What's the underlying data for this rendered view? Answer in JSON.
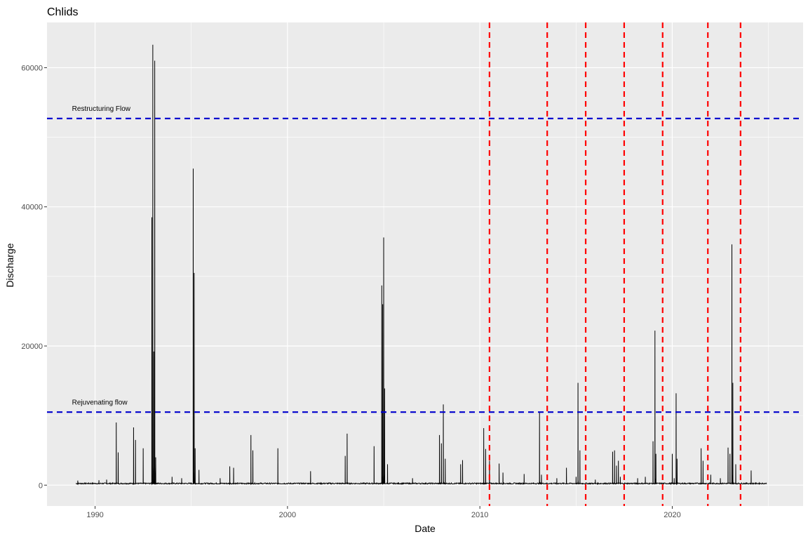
{
  "chart_data": {
    "type": "line",
    "title": "Chlids",
    "xlabel": "Date",
    "ylabel": "Discharge",
    "xlim": [
      1987.5,
      2026.8
    ],
    "ylim": [
      -3000,
      66500
    ],
    "x_ticks": [
      1990,
      2000,
      2010,
      2020
    ],
    "x_tick_labels": [
      "1990",
      "2000",
      "2010",
      "2020"
    ],
    "y_ticks": [
      0,
      20000,
      40000,
      60000
    ],
    "y_tick_labels": [
      "0",
      "20000",
      "40000",
      "60000"
    ],
    "grid": true,
    "background": "#ebebeb",
    "grid_color": "#ffffff",
    "series": [
      {
        "color": "#000000",
        "baseline": 150,
        "x_range": [
          1989.0,
          2024.9
        ],
        "peaks": [
          {
            "x": 1989.1,
            "y": 650
          },
          {
            "x": 1990.2,
            "y": 700
          },
          {
            "x": 1990.6,
            "y": 800
          },
          {
            "x": 1991.1,
            "y": 9000
          },
          {
            "x": 1991.2,
            "y": 4700
          },
          {
            "x": 1992.0,
            "y": 8300
          },
          {
            "x": 1992.1,
            "y": 6500
          },
          {
            "x": 1992.5,
            "y": 5300
          },
          {
            "x": 1992.95,
            "y": 38500
          },
          {
            "x": 1993.0,
            "y": 63300
          },
          {
            "x": 1993.05,
            "y": 19200
          },
          {
            "x": 1993.1,
            "y": 61000
          },
          {
            "x": 1993.15,
            "y": 4000
          },
          {
            "x": 1994.0,
            "y": 1200
          },
          {
            "x": 1994.5,
            "y": 1000
          },
          {
            "x": 1995.1,
            "y": 45500
          },
          {
            "x": 1995.15,
            "y": 30500
          },
          {
            "x": 1995.2,
            "y": 5300
          },
          {
            "x": 1995.4,
            "y": 2200
          },
          {
            "x": 1996.5,
            "y": 1000
          },
          {
            "x": 1997.0,
            "y": 2700
          },
          {
            "x": 1997.2,
            "y": 2500
          },
          {
            "x": 1998.1,
            "y": 7200
          },
          {
            "x": 1998.2,
            "y": 5000
          },
          {
            "x": 1999.5,
            "y": 5300
          },
          {
            "x": 2001.2,
            "y": 2000
          },
          {
            "x": 2003.0,
            "y": 4200
          },
          {
            "x": 2003.1,
            "y": 7400
          },
          {
            "x": 2004.5,
            "y": 5600
          },
          {
            "x": 2004.9,
            "y": 28700
          },
          {
            "x": 2004.95,
            "y": 26000
          },
          {
            "x": 2005.0,
            "y": 35600
          },
          {
            "x": 2005.05,
            "y": 13900
          },
          {
            "x": 2005.2,
            "y": 3000
          },
          {
            "x": 2006.5,
            "y": 1000
          },
          {
            "x": 2007.9,
            "y": 7200
          },
          {
            "x": 2008.0,
            "y": 6000
          },
          {
            "x": 2008.1,
            "y": 11600
          },
          {
            "x": 2008.2,
            "y": 3800
          },
          {
            "x": 2009.0,
            "y": 3000
          },
          {
            "x": 2009.1,
            "y": 3600
          },
          {
            "x": 2010.2,
            "y": 8200
          },
          {
            "x": 2010.3,
            "y": 5200
          },
          {
            "x": 2010.5,
            "y": 3500
          },
          {
            "x": 2011.0,
            "y": 3100
          },
          {
            "x": 2011.2,
            "y": 1800
          },
          {
            "x": 2012.3,
            "y": 1600
          },
          {
            "x": 2013.1,
            "y": 10500
          },
          {
            "x": 2013.2,
            "y": 1500
          },
          {
            "x": 2014.0,
            "y": 1000
          },
          {
            "x": 2014.5,
            "y": 2500
          },
          {
            "x": 2015.0,
            "y": 1200
          },
          {
            "x": 2015.1,
            "y": 14700
          },
          {
            "x": 2015.2,
            "y": 5000
          },
          {
            "x": 2016.0,
            "y": 800
          },
          {
            "x": 2016.9,
            "y": 4800
          },
          {
            "x": 2017.0,
            "y": 5000
          },
          {
            "x": 2017.1,
            "y": 2800
          },
          {
            "x": 2017.2,
            "y": 3500
          },
          {
            "x": 2017.3,
            "y": 1200
          },
          {
            "x": 2018.2,
            "y": 1000
          },
          {
            "x": 2018.6,
            "y": 1200
          },
          {
            "x": 2019.0,
            "y": 6300
          },
          {
            "x": 2019.1,
            "y": 22200
          },
          {
            "x": 2019.15,
            "y": 4500
          },
          {
            "x": 2020.0,
            "y": 4500
          },
          {
            "x": 2020.1,
            "y": 1000
          },
          {
            "x": 2020.2,
            "y": 13200
          },
          {
            "x": 2020.25,
            "y": 3800
          },
          {
            "x": 2021.5,
            "y": 5300
          },
          {
            "x": 2021.6,
            "y": 3500
          },
          {
            "x": 2022.0,
            "y": 1500
          },
          {
            "x": 2022.5,
            "y": 1000
          },
          {
            "x": 2022.9,
            "y": 5400
          },
          {
            "x": 2023.0,
            "y": 4500
          },
          {
            "x": 2023.1,
            "y": 34600
          },
          {
            "x": 2023.15,
            "y": 14700
          },
          {
            "x": 2023.3,
            "y": 3000
          },
          {
            "x": 2024.1,
            "y": 2100
          }
        ]
      }
    ],
    "hlines": [
      {
        "y": 52700,
        "color": "#0000cd",
        "dash": true,
        "label": "Restructuring Flow",
        "label_x": 1988.8,
        "label_y": 53800
      },
      {
        "y": 10500,
        "color": "#0000cd",
        "dash": true,
        "label": "Rejuvenating  flow",
        "label_x": 1988.8,
        "label_y": 11600
      }
    ],
    "vlines": [
      {
        "x": 2010.5,
        "color": "#ff0000",
        "dash": true
      },
      {
        "x": 2013.5,
        "color": "#ff0000",
        "dash": true
      },
      {
        "x": 2015.5,
        "color": "#ff0000",
        "dash": true
      },
      {
        "x": 2017.5,
        "color": "#ff0000",
        "dash": true
      },
      {
        "x": 2019.5,
        "color": "#ff0000",
        "dash": true
      },
      {
        "x": 2021.85,
        "color": "#ff0000",
        "dash": true
      },
      {
        "x": 2023.55,
        "color": "#ff0000",
        "dash": true
      }
    ]
  }
}
